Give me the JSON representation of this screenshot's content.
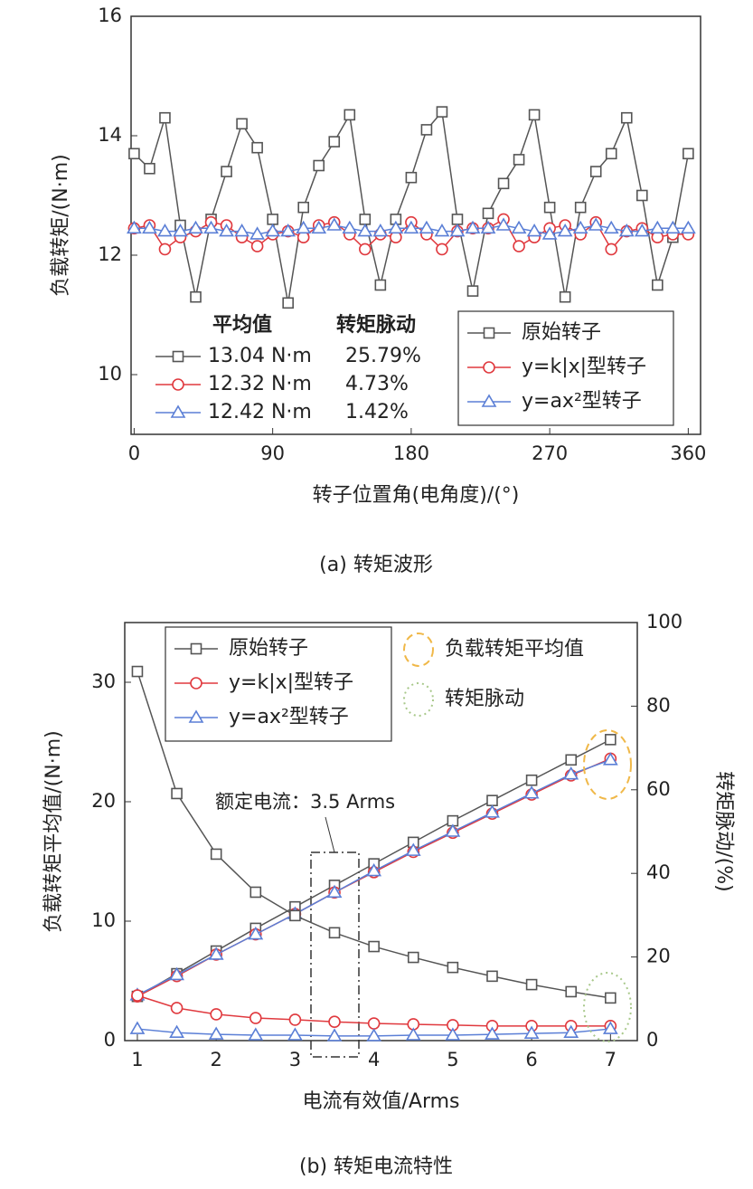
{
  "chart_data": [
    {
      "type": "line",
      "xlabel": "转子位置角(电角度)/(°)",
      "ylabel": "负载转矩/(N·m)",
      "caption": "(a) 转矩波形",
      "x": [
        0,
        10,
        20,
        30,
        40,
        50,
        60,
        70,
        80,
        90,
        100,
        110,
        120,
        130,
        140,
        150,
        160,
        170,
        180,
        190,
        200,
        210,
        220,
        230,
        240,
        250,
        260,
        270,
        280,
        290,
        300,
        310,
        320,
        330,
        340,
        350,
        360
      ],
      "xlim": [
        -2,
        368
      ],
      "xticks": [
        0,
        90,
        180,
        270,
        360
      ],
      "ylim": [
        9,
        16
      ],
      "yticks": [
        10,
        12,
        14,
        16
      ],
      "legend": "lower right",
      "series": [
        {
          "name": "原始转子",
          "color": "#555555",
          "marker": "square",
          "values": [
            13.7,
            13.45,
            14.3,
            12.5,
            11.3,
            12.6,
            13.4,
            14.2,
            13.8,
            12.6,
            11.2,
            12.8,
            13.5,
            13.9,
            14.35,
            12.6,
            11.5,
            12.6,
            13.3,
            14.1,
            14.4,
            12.6,
            11.4,
            12.7,
            13.2,
            13.6,
            14.35,
            12.8,
            11.3,
            12.8,
            13.4,
            13.7,
            14.3,
            13.0,
            11.5,
            12.3,
            13.7
          ]
        },
        {
          "name": "y=k|x|型转子",
          "color": "#e0393e",
          "marker": "circle",
          "values": [
            12.45,
            12.5,
            12.1,
            12.3,
            12.4,
            12.55,
            12.5,
            12.3,
            12.15,
            12.35,
            12.4,
            12.3,
            12.5,
            12.55,
            12.35,
            12.1,
            12.35,
            12.3,
            12.55,
            12.35,
            12.1,
            12.4,
            12.45,
            12.45,
            12.6,
            12.15,
            12.3,
            12.45,
            12.5,
            12.35,
            12.55,
            12.1,
            12.4,
            12.45,
            12.3,
            12.35,
            12.35
          ]
        },
        {
          "name": "y=ax²型转子",
          "color": "#5b7fd6",
          "marker": "triangle",
          "values": [
            12.45,
            12.45,
            12.4,
            12.4,
            12.45,
            12.45,
            12.4,
            12.4,
            12.35,
            12.4,
            12.4,
            12.45,
            12.45,
            12.5,
            12.45,
            12.4,
            12.4,
            12.45,
            12.45,
            12.45,
            12.4,
            12.4,
            12.45,
            12.45,
            12.5,
            12.45,
            12.4,
            12.35,
            12.4,
            12.45,
            12.5,
            12.45,
            12.4,
            12.4,
            12.45,
            12.45,
            12.45
          ]
        }
      ],
      "stats_table": {
        "headers": [
          "平均值",
          "转矩脉动"
        ],
        "rows": [
          [
            "13.04 N·m",
            "25.79%"
          ],
          [
            "12.32 N·m",
            "4.73%"
          ],
          [
            "12.42 N·m",
            "1.42%"
          ]
        ]
      }
    },
    {
      "type": "line",
      "xlabel": "电流有效值/Arms",
      "ylabel": "负载转矩平均值/(N·m)",
      "y2label": "转矩脉动/(%)",
      "caption": "(b) 转矩电流特性",
      "x": [
        1,
        1.5,
        2,
        2.5,
        3,
        3.5,
        4,
        4.5,
        5,
        5.5,
        6,
        6.5,
        7
      ],
      "xlim": [
        0.84,
        7.34
      ],
      "xticks": [
        1,
        2,
        3,
        4,
        5,
        6,
        7
      ],
      "ylim": [
        0,
        35
      ],
      "yticks": [
        0,
        10,
        20,
        30
      ],
      "y2lim": [
        0,
        100
      ],
      "y2ticks": [
        0,
        20,
        40,
        60,
        80,
        100
      ],
      "legend": "upper left",
      "series": [
        {
          "name": "原始转子",
          "color": "#555555",
          "marker": "square",
          "values": [
            3.7,
            5.6,
            7.5,
            9.4,
            11.2,
            13.0,
            14.8,
            16.6,
            18.4,
            20.1,
            21.8,
            23.5,
            25.2
          ]
        },
        {
          "name": "y=k|x|型转子",
          "color": "#e0393e",
          "marker": "circle",
          "values": [
            3.7,
            5.4,
            7.2,
            8.9,
            10.6,
            12.4,
            14.1,
            15.8,
            17.4,
            19.0,
            20.6,
            22.2,
            23.6
          ]
        },
        {
          "name": "y=ax²型转子",
          "color": "#5b7fd6",
          "marker": "triangle",
          "values": [
            3.8,
            5.5,
            7.2,
            8.9,
            10.6,
            12.4,
            14.2,
            15.9,
            17.5,
            19.1,
            20.7,
            22.3,
            23.5
          ]
        },
        {
          "color": "#555555",
          "marker": "square",
          "axis": "y2",
          "values": [
            88.3,
            59.1,
            44.6,
            35.5,
            29.9,
            25.8,
            22.5,
            19.9,
            17.5,
            15.4,
            13.4,
            11.7,
            10.2
          ]
        },
        {
          "color": "#e0393e",
          "marker": "circle",
          "axis": "y2",
          "values": [
            10.8,
            7.8,
            6.3,
            5.4,
            5.0,
            4.5,
            4.1,
            3.9,
            3.7,
            3.5,
            3.5,
            3.5,
            3.5
          ]
        },
        {
          "color": "#5b7fd6",
          "marker": "triangle",
          "axis": "y2",
          "values": [
            2.8,
            1.9,
            1.5,
            1.3,
            1.3,
            1.1,
            1.1,
            1.3,
            1.3,
            1.5,
            1.7,
            1.9,
            2.8
          ]
        }
      ],
      "annotation": "额定电流：3.5 Arms",
      "ellipse_legend": [
        {
          "label": "负载转矩平均值",
          "color": "#f0b848"
        },
        {
          "label": "转矩脉动",
          "color": "#a8c88a"
        }
      ]
    }
  ]
}
